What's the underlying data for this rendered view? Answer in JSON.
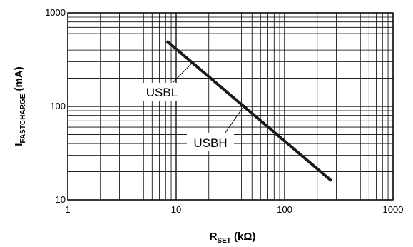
{
  "chart_data": {
    "type": "line",
    "x_scale": "log",
    "y_scale": "log",
    "xlim": [
      1,
      1000
    ],
    "ylim": [
      10,
      1000
    ],
    "x_ticks": [
      {
        "value": 1,
        "label": "1"
      },
      {
        "value": 10,
        "label": "10"
      },
      {
        "value": 100,
        "label": "100"
      },
      {
        "value": 1000,
        "label": "1000"
      }
    ],
    "y_ticks": [
      {
        "value": 10,
        "label": "10"
      },
      {
        "value": 100,
        "label": "100"
      },
      {
        "value": 1000,
        "label": "1000"
      }
    ],
    "xlabel": {
      "main": "R",
      "sub": "SET",
      "tail": " (kΩ)"
    },
    "ylabel": {
      "main": "I",
      "sub": "FASTCHARGE",
      "tail": " (mA)"
    },
    "grid": true,
    "series": [
      {
        "x": [
          8.2,
          270
        ],
        "y": [
          500,
          16
        ],
        "color": "#1a1a1a"
      }
    ],
    "annotations": [
      {
        "text": "USBL",
        "points_to": {
          "x": 14,
          "y": 290
        }
      },
      {
        "text": "USBH",
        "points_to": {
          "x": 42,
          "y": 100
        }
      }
    ]
  }
}
